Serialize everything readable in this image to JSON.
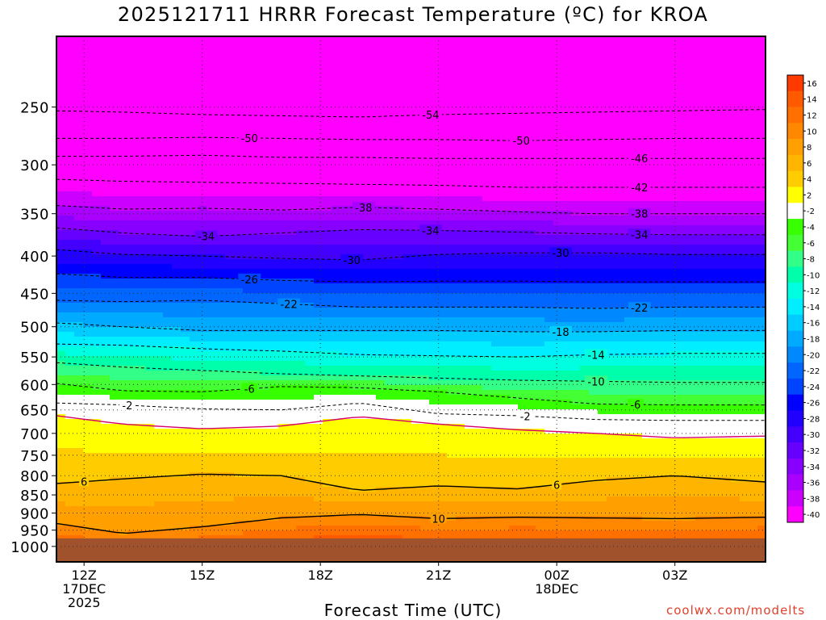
{
  "chart_data": {
    "type": "heatmap",
    "title": "2025121711 HRRR Forecast Temperature (ºC) for KROA",
    "xlabel": "Forecast Time (UTC)",
    "ylabel": "",
    "credit": "coolwx.com/modelts",
    "x_range_hours": [
      11.3,
      29.3
    ],
    "x_ticks": [
      {
        "hour": 12,
        "lines": [
          "12Z",
          "17DEC",
          "2025"
        ]
      },
      {
        "hour": 15,
        "lines": [
          "15Z"
        ]
      },
      {
        "hour": 18,
        "lines": [
          "18Z"
        ]
      },
      {
        "hour": 21,
        "lines": [
          "21Z"
        ]
      },
      {
        "hour": 24,
        "lines": [
          "00Z",
          "18DEC"
        ]
      },
      {
        "hour": 27,
        "lines": [
          "03Z"
        ]
      }
    ],
    "y_range_hPa": [
      1050,
      200
    ],
    "y_scale": "log-pressure",
    "y_ticks": [
      250,
      300,
      350,
      400,
      450,
      500,
      550,
      600,
      650,
      700,
      750,
      800,
      850,
      900,
      950,
      1000
    ],
    "y_tick_labels": [
      "250",
      "300",
      "350",
      "400",
      "450",
      "500",
      "550",
      "600",
      "650",
      "700",
      "750",
      "800",
      "850",
      "900",
      "950",
      "1000"
    ],
    "grid": true,
    "surface_pressure_hPa": 975,
    "colorbar": {
      "levels": [
        16,
        14,
        12,
        10,
        8,
        6,
        4,
        2,
        -2,
        -4,
        -6,
        -8,
        -10,
        -12,
        -14,
        -16,
        -18,
        -20,
        -22,
        -24,
        -26,
        -28,
        -30,
        -32,
        -34,
        -36,
        -38,
        -40
      ],
      "labels": [
        "16",
        "14",
        "12",
        "10",
        "8",
        "6",
        "4",
        "2",
        "-2",
        "-4",
        "-6",
        "-8",
        "-10",
        "-12",
        "-14",
        "-16",
        "-18",
        "-20",
        "-22",
        "-24",
        "-26",
        "-28",
        "-30",
        "-32",
        "-34",
        "-36",
        "-38",
        "-40"
      ],
      "colors": [
        "#ff3a00",
        "#ff5a00",
        "#ff7000",
        "#ff8800",
        "#ffa000",
        "#ffb400",
        "#ffcc00",
        "#ffff00",
        "#ffffff",
        "#37ff00",
        "#44ff33",
        "#33ff88",
        "#00ffaa",
        "#00ffe0",
        "#00eeff",
        "#00ccff",
        "#00aaff",
        "#0088ff",
        "#0066ff",
        "#0044ff",
        "#0000ff",
        "#2200ff",
        "#4400ff",
        "#6600ff",
        "#8800ff",
        "#aa00ff",
        "#cc00ff",
        "#ff00ff"
      ]
    },
    "contours": [
      {
        "value": -54,
        "label": "-54",
        "pressure_hPa": [
          253,
          254,
          256,
          257,
          258,
          256,
          255,
          254,
          253,
          252
        ],
        "labels_at_hours": [
          20.8
        ]
      },
      {
        "value": -50,
        "label": "-50",
        "pressure_hPa": [
          276,
          276,
          275,
          276,
          277,
          277,
          278,
          277,
          276,
          276
        ],
        "labels_at_hours": [
          16.2,
          23.1
        ]
      },
      {
        "value": -46,
        "label": "-46",
        "pressure_hPa": [
          292,
          292,
          291,
          293,
          293,
          294,
          294,
          294,
          294,
          294
        ],
        "labels_at_hours": [
          26.1
        ]
      },
      {
        "value": -42,
        "label": "-42",
        "pressure_hPa": [
          314,
          316,
          317,
          318,
          319,
          320,
          322,
          322,
          322,
          322
        ],
        "labels_at_hours": [
          26.1
        ]
      },
      {
        "value": -38,
        "label": "-38",
        "pressure_hPa": [
          341,
          345,
          344,
          346,
          343,
          345,
          348,
          350,
          350,
          350
        ],
        "labels_at_hours": [
          19.1,
          26.1
        ]
      },
      {
        "value": -34,
        "label": "-34",
        "pressure_hPa": [
          366,
          372,
          376,
          372,
          368,
          369,
          371,
          373,
          374,
          374
        ],
        "labels_at_hours": [
          15.1,
          20.8,
          26.1
        ]
      },
      {
        "value": -30,
        "label": "-30",
        "pressure_hPa": [
          392,
          398,
          400,
          403,
          405,
          398,
          396,
          396,
          398,
          398
        ],
        "labels_at_hours": [
          18.8,
          24.1
        ]
      },
      {
        "value": -26,
        "label": "-26",
        "pressure_hPa": [
          423,
          428,
          428,
          432,
          434,
          433,
          433,
          434,
          434,
          434
        ],
        "labels_at_hours": [
          16.2
        ]
      },
      {
        "value": -22,
        "label": "-22",
        "pressure_hPa": [
          460,
          462,
          460,
          465,
          470,
          470,
          470,
          472,
          470,
          470
        ],
        "labels_at_hours": [
          17.2,
          26.1
        ]
      },
      {
        "value": -18,
        "label": "-18",
        "pressure_hPa": [
          494,
          500,
          506,
          506,
          506,
          506,
          508,
          508,
          506,
          506
        ],
        "labels_at_hours": [
          24.1
        ]
      },
      {
        "value": -14,
        "label": "-14",
        "pressure_hPa": [
          528,
          530,
          536,
          540,
          546,
          548,
          550,
          546,
          544,
          544
        ],
        "labels_at_hours": [
          25.0
        ]
      },
      {
        "value": -10,
        "label": "-10",
        "pressure_hPa": [
          560,
          568,
          574,
          580,
          584,
          588,
          592,
          594,
          596,
          596
        ],
        "labels_at_hours": [
          25.0
        ]
      },
      {
        "value": -6,
        "label": "-6",
        "pressure_hPa": [
          598,
          612,
          614,
          604,
          606,
          614,
          626,
          638,
          640,
          640
        ],
        "labels_at_hours": [
          16.2,
          26.0
        ]
      },
      {
        "value": -2,
        "label": "-2",
        "pressure_hPa": [
          636,
          640,
          648,
          650,
          636,
          658,
          662,
          670,
          672,
          672
        ],
        "labels_at_hours": [
          13.1,
          23.2
        ]
      },
      {
        "value": 2,
        "label": "",
        "pressure_hPa": [
          662,
          680,
          690,
          684,
          664,
          680,
          692,
          700,
          710,
          706
        ],
        "labels_at_hours": []
      },
      {
        "value": 6,
        "label": "6",
        "pressure_hPa": [
          820,
          808,
          796,
          800,
          838,
          826,
          834,
          812,
          800,
          816
        ],
        "labels_at_hours": [
          12.0,
          24.0
        ]
      },
      {
        "value": 10,
        "label": "10",
        "pressure_hPa": [
          930,
          960,
          940,
          914,
          904,
          916,
          912,
          914,
          916,
          912
        ],
        "labels_at_hours": [
          21.0
        ]
      }
    ],
    "contour_hours": [
      11.3,
      13,
      15,
      17,
      19,
      21,
      23,
      25,
      27,
      29.3
    ]
  }
}
